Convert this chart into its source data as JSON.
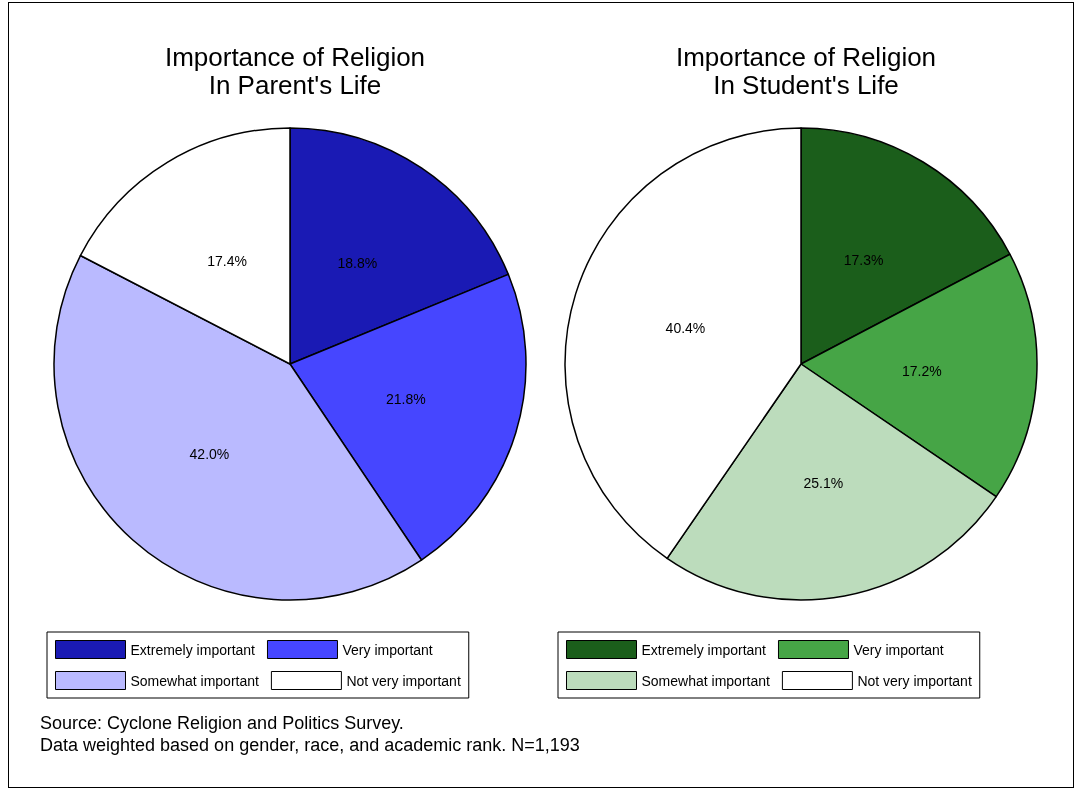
{
  "chart_data": [
    {
      "type": "pie",
      "title": "Importance of Religion\nIn Parent's Life",
      "categories": [
        "Extremely important",
        "Very important",
        "Somewhat important",
        "Not very important"
      ],
      "values": [
        18.8,
        21.8,
        42.0,
        17.4
      ],
      "value_labels": [
        "18.8%",
        "21.8%",
        "42.0%",
        "17.4%"
      ],
      "colors": [
        "#1a1ab4",
        "#4646ff",
        "#babaff",
        "#ffffff"
      ],
      "legend": "bottom",
      "annotations": [
        "Source: Cyclone Religion and Politics Survey.",
        "Data weighted based on gender, race, and academic rank. N=1,193"
      ]
    },
    {
      "type": "pie",
      "title": "Importance of Religion\nIn Student's Life",
      "categories": [
        "Extremely important",
        "Very important",
        "Somewhat important",
        "Not very important"
      ],
      "values": [
        17.3,
        17.2,
        25.1,
        40.4
      ],
      "value_labels": [
        "17.3%",
        "17.2%",
        "25.1%",
        "40.4%"
      ],
      "colors": [
        "#1b5e1b",
        "#46a546",
        "#bcdcbc",
        "#ffffff"
      ],
      "legend": "bottom"
    }
  ]
}
